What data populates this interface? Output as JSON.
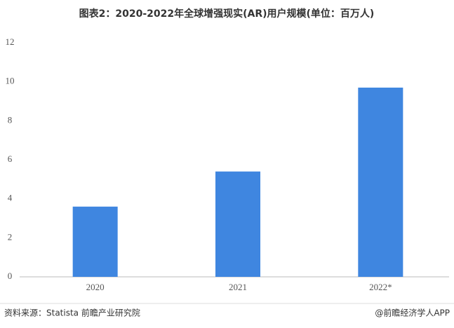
{
  "chart_data": {
    "type": "bar",
    "title": "图表2：2020-2022年全球增强现实(AR)用户规模(单位：百万人)",
    "categories": [
      "2020",
      "2021",
      "2022*"
    ],
    "values": [
      3.6,
      5.4,
      9.7
    ],
    "color": "#3f86e0",
    "ylim": [
      0,
      12
    ],
    "yticks": [
      0,
      2,
      4,
      6,
      8,
      10,
      12
    ],
    "grid": false,
    "source": "资料来源：Statista 前瞻产业研究院",
    "credit": "@前瞻经济学人APP"
  }
}
